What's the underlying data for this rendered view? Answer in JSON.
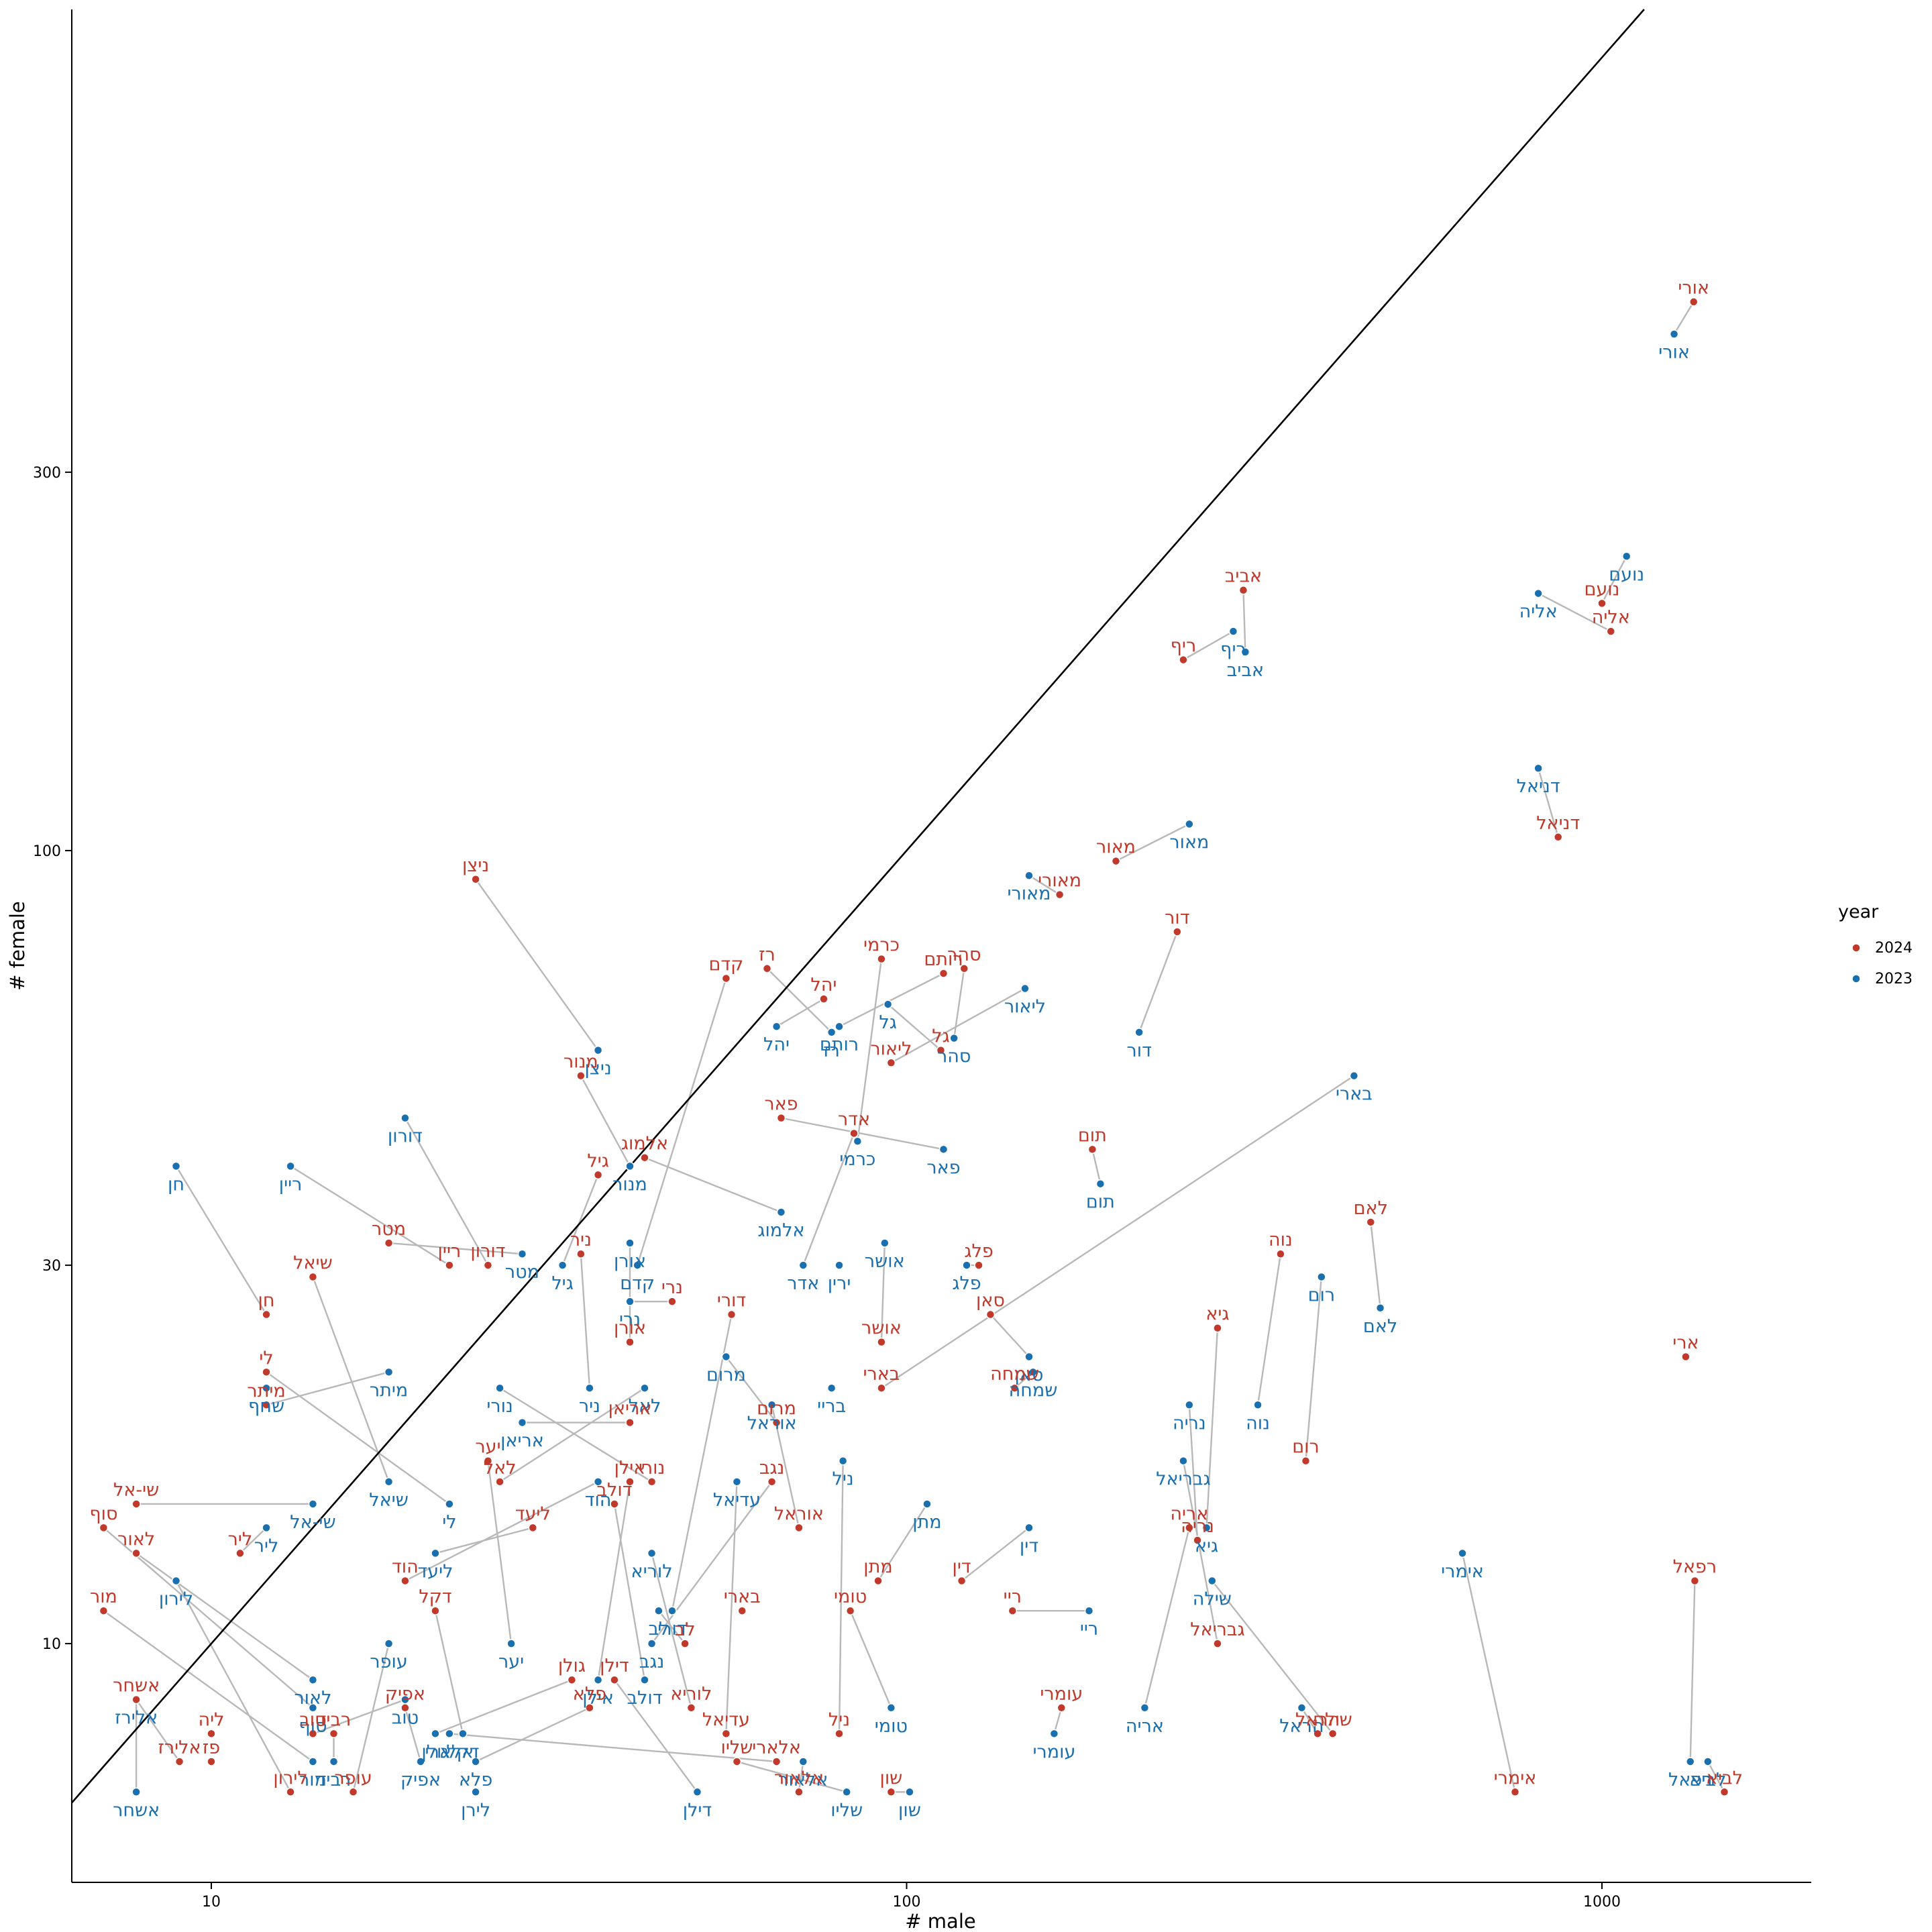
{
  "chart_data": {
    "type": "scatter",
    "xlabel": "# male",
    "ylabel": "# female",
    "x_scale": "log",
    "y_scale": "log",
    "xlim": [
      6.3,
      2000
    ],
    "ylim": [
      5,
      1150
    ],
    "x_ticks": [
      10,
      100,
      1000
    ],
    "y_ticks": [
      10,
      30,
      100,
      300
    ],
    "reference_line": "y = x",
    "grid": false,
    "legend": {
      "title": "year",
      "position": "right",
      "entries": [
        "2024",
        "2023"
      ]
    },
    "colors": {
      "2024": "#c0392b",
      "2023": "#1a6faf",
      "segment": "#b8b8b8"
    },
    "series": [
      {
        "name": "2024",
        "points": [
          {
            "label": "אורי",
            "x": 1355,
            "y": 492
          },
          {
            "label": "נועם",
            "x": 1000,
            "y": 205
          },
          {
            "label": "אליה",
            "x": 1030,
            "y": 189
          },
          {
            "label": "אביב",
            "x": 305,
            "y": 213
          },
          {
            "label": "ריף",
            "x": 250,
            "y": 174
          },
          {
            "label": "דניאל",
            "x": 865,
            "y": 104
          },
          {
            "label": "מאור",
            "x": 200,
            "y": 97
          },
          {
            "label": "מאורי",
            "x": 166,
            "y": 88
          },
          {
            "label": "דור",
            "x": 245,
            "y": 79
          },
          {
            "label": "כרמי",
            "x": 92,
            "y": 73
          },
          {
            "label": "סהר",
            "x": 121,
            "y": 71
          },
          {
            "label": "רז",
            "x": 63,
            "y": 71
          },
          {
            "label": "רותם",
            "x": 113,
            "y": 70
          },
          {
            "label": "קדם",
            "x": 55,
            "y": 69
          },
          {
            "label": "יהל",
            "x": 76,
            "y": 65
          },
          {
            "label": "גל",
            "x": 112,
            "y": 56
          },
          {
            "label": "ליאור",
            "x": 95,
            "y": 54
          },
          {
            "label": "ניצן",
            "x": 24,
            "y": 92
          },
          {
            "label": "מנור",
            "x": 34,
            "y": 52
          },
          {
            "label": "פאר",
            "x": 66,
            "y": 46
          },
          {
            "label": "אדר",
            "x": 84,
            "y": 44
          },
          {
            "label": "אלמוג",
            "x": 42,
            "y": 41
          },
          {
            "label": "תום",
            "x": 185,
            "y": 42
          },
          {
            "label": "גיל",
            "x": 36,
            "y": 39
          },
          {
            "label": "לאם",
            "x": 465,
            "y": 34
          },
          {
            "label": "ניר",
            "x": 34,
            "y": 31
          },
          {
            "label": "נוה",
            "x": 345,
            "y": 31
          },
          {
            "label": "פלג",
            "x": 127,
            "y": 30
          },
          {
            "label": "מטר",
            "x": 18,
            "y": 32
          },
          {
            "label": "ריין",
            "x": 22,
            "y": 30
          },
          {
            "label": "דורון",
            "x": 25,
            "y": 30
          },
          {
            "label": "שיאל",
            "x": 14,
            "y": 29
          },
          {
            "label": "נרי",
            "x": 46,
            "y": 27
          },
          {
            "label": "דורי",
            "x": 56,
            "y": 26
          },
          {
            "label": "סאן",
            "x": 132,
            "y": 26
          },
          {
            "label": "חן",
            "x": 12,
            "y": 26
          },
          {
            "label": "גיא",
            "x": 280,
            "y": 25
          },
          {
            "label": "אושר",
            "x": 92,
            "y": 24
          },
          {
            "label": "אורן",
            "x": 40,
            "y": 24
          },
          {
            "label": "ארי",
            "x": 1320,
            "y": 23
          },
          {
            "label": "לי",
            "x": 12,
            "y": 22
          },
          {
            "label": "שמחה",
            "x": 143,
            "y": 21
          },
          {
            "label": "בארי",
            "x": 92,
            "y": 21
          },
          {
            "label": "מיתר",
            "x": 12,
            "y": 20
          },
          {
            "label": "אריאן",
            "x": 40,
            "y": 19
          },
          {
            "label": "מרום",
            "x": 65,
            "y": 19
          },
          {
            "label": "יער",
            "x": 25,
            "y": 17
          },
          {
            "label": "רום",
            "x": 375,
            "y": 17
          },
          {
            "label": "אילן",
            "x": 40,
            "y": 16
          },
          {
            "label": "נגב",
            "x": 64,
            "y": 16
          },
          {
            "label": "לאל",
            "x": 26,
            "y": 16
          },
          {
            "label": "נורי",
            "x": 43,
            "y": 16
          },
          {
            "label": "דולב",
            "x": 38,
            "y": 15
          },
          {
            "label": "אריה",
            "x": 255,
            "y": 14
          },
          {
            "label": "ליעד",
            "x": 29,
            "y": 14
          },
          {
            "label": "אוראל",
            "x": 70,
            "y": 14
          },
          {
            "label": "סוף",
            "x": 7,
            "y": 14
          },
          {
            "label": "שי-אל",
            "x": 7.8,
            "y": 15
          },
          {
            "label": "נריה",
            "x": 262,
            "y": 13.5
          },
          {
            "label": "ליר",
            "x": 11,
            "y": 13
          },
          {
            "label": "לאור",
            "x": 7.8,
            "y": 13
          },
          {
            "label": "הוד",
            "x": 19,
            "y": 12
          },
          {
            "label": "רפאל",
            "x": 1360,
            "y": 12
          },
          {
            "label": "מתן",
            "x": 91,
            "y": 12
          },
          {
            "label": "דין",
            "x": 120,
            "y": 12
          },
          {
            "label": "מור",
            "x": 7,
            "y": 11
          },
          {
            "label": "דקל",
            "x": 21,
            "y": 11
          },
          {
            "label": "בארי",
            "x": 58,
            "y": 11
          },
          {
            "label": "ריי",
            "x": 142,
            "y": 11
          },
          {
            "label": "טומי",
            "x": 83,
            "y": 11
          },
          {
            "label": "לב",
            "x": 48,
            "y": 10
          },
          {
            "label": "גבריאל",
            "x": 280,
            "y": 10
          },
          {
            "label": "גולן",
            "x": 33,
            "y": 9
          },
          {
            "label": "דילן",
            "x": 38,
            "y": 9
          },
          {
            "label": "אפיק",
            "x": 19,
            "y": 8.3
          },
          {
            "label": "פלא",
            "x": 35,
            "y": 8.3
          },
          {
            "label": "לוריא",
            "x": 49,
            "y": 8.3
          },
          {
            "label": "עומרי",
            "x": 167,
            "y": 8.3
          },
          {
            "label": "אשחר",
            "x": 7.8,
            "y": 8.5
          },
          {
            "label": "ליה",
            "x": 10,
            "y": 7.7
          },
          {
            "label": "טוב",
            "x": 14,
            "y": 7.7
          },
          {
            "label": "רביד",
            "x": 15,
            "y": 7.7
          },
          {
            "label": "עדיאל",
            "x": 55,
            "y": 7.7
          },
          {
            "label": "ניל",
            "x": 80,
            "y": 7.7
          },
          {
            "label": "הראל",
            "x": 390,
            "y": 7.7
          },
          {
            "label": "שילה",
            "x": 410,
            "y": 7.7
          },
          {
            "label": "אלירז",
            "x": 9,
            "y": 7.1
          },
          {
            "label": "פז",
            "x": 10,
            "y": 7.1
          },
          {
            "label": "אלארי",
            "x": 65,
            "y": 7.1
          },
          {
            "label": "שליו",
            "x": 57,
            "y": 7.1
          },
          {
            "label": "לירון",
            "x": 13,
            "y": 6.5
          },
          {
            "label": "עופר",
            "x": 16,
            "y": 6.5
          },
          {
            "label": "אלאור",
            "x": 70,
            "y": 6.5
          },
          {
            "label": "שון",
            "x": 95,
            "y": 6.5
          },
          {
            "label": "אימרי",
            "x": 750,
            "y": 6.5
          },
          {
            "label": "לביא",
            "x": 1500,
            "y": 6.5
          }
        ]
      },
      {
        "name": "2023",
        "points": [
          {
            "label": "אורי",
            "x": 1270,
            "y": 448
          },
          {
            "label": "נועם",
            "x": 1085,
            "y": 235
          },
          {
            "label": "אליה",
            "x": 810,
            "y": 211
          },
          {
            "label": "ריף",
            "x": 295,
            "y": 189
          },
          {
            "label": "אביב",
            "x": 307,
            "y": 178
          },
          {
            "label": "דניאל",
            "x": 810,
            "y": 127
          },
          {
            "label": "מאור",
            "x": 255,
            "y": 108
          },
          {
            "label": "מאורי",
            "x": 150,
            "y": 93
          },
          {
            "label": "ליאור",
            "x": 148,
            "y": 67
          },
          {
            "label": "גל",
            "x": 94,
            "y": 64
          },
          {
            "label": "רותם",
            "x": 80,
            "y": 60
          },
          {
            "label": "יהל",
            "x": 65,
            "y": 60
          },
          {
            "label": "רז",
            "x": 78,
            "y": 59
          },
          {
            "label": "סהר",
            "x": 117,
            "y": 58
          },
          {
            "label": "דור",
            "x": 216,
            "y": 59
          },
          {
            "label": "ניצן",
            "x": 36,
            "y": 56
          },
          {
            "label": "בארי",
            "x": 440,
            "y": 52
          },
          {
            "label": "כרמי",
            "x": 85,
            "y": 43
          },
          {
            "label": "פאר",
            "x": 113,
            "y": 42
          },
          {
            "label": "דורון",
            "x": 19,
            "y": 46
          },
          {
            "label": "חן",
            "x": 8.9,
            "y": 40
          },
          {
            "label": "ריין",
            "x": 13,
            "y": 40
          },
          {
            "label": "מנור",
            "x": 40,
            "y": 40
          },
          {
            "label": "תום",
            "x": 190,
            "y": 38
          },
          {
            "label": "אלמוג",
            "x": 66,
            "y": 35
          },
          {
            "label": "מטר",
            "x": 28,
            "y": 31
          },
          {
            "label": "גיל",
            "x": 32,
            "y": 30
          },
          {
            "label": "אורן",
            "x": 40,
            "y": 32
          },
          {
            "label": "אושר",
            "x": 93,
            "y": 32
          },
          {
            "label": "קדם",
            "x": 41,
            "y": 30
          },
          {
            "label": "אדר",
            "x": 71,
            "y": 30
          },
          {
            "label": "ירין",
            "x": 80,
            "y": 30
          },
          {
            "label": "פלג",
            "x": 122,
            "y": 30
          },
          {
            "label": "רום",
            "x": 395,
            "y": 29
          },
          {
            "label": "לאם",
            "x": 480,
            "y": 26.5
          },
          {
            "label": "נרי",
            "x": 40,
            "y": 27
          },
          {
            "label": "סאן",
            "x": 150,
            "y": 23
          },
          {
            "label": "שמחה",
            "x": 152,
            "y": 22
          },
          {
            "label": "מרום",
            "x": 55,
            "y": 23
          },
          {
            "label": "מיתר",
            "x": 18,
            "y": 22
          },
          {
            "label": "ניר",
            "x": 35,
            "y": 21
          },
          {
            "label": "נורי",
            "x": 26,
            "y": 21
          },
          {
            "label": "לאל",
            "x": 42,
            "y": 21
          },
          {
            "label": "בריי",
            "x": 78,
            "y": 21
          },
          {
            "label": "שחף",
            "x": 12,
            "y": 21
          },
          {
            "label": "נוה",
            "x": 320,
            "y": 20
          },
          {
            "label": "נריה",
            "x": 255,
            "y": 20
          },
          {
            "label": "אוראל",
            "x": 64,
            "y": 20
          },
          {
            "label": "אריאן",
            "x": 28,
            "y": 19
          },
          {
            "label": "ניל",
            "x": 81,
            "y": 17
          },
          {
            "label": "גבריאל",
            "x": 250,
            "y": 17
          },
          {
            "label": "הוד",
            "x": 36,
            "y": 16
          },
          {
            "label": "עדיאל",
            "x": 57,
            "y": 16
          },
          {
            "label": "שיאל",
            "x": 18,
            "y": 16
          },
          {
            "label": "שי-אל",
            "x": 14,
            "y": 15
          },
          {
            "label": "לי",
            "x": 22,
            "y": 15
          },
          {
            "label": "מתן",
            "x": 107,
            "y": 15
          },
          {
            "label": "גיא",
            "x": 270,
            "y": 14
          },
          {
            "label": "ליר",
            "x": 12,
            "y": 14
          },
          {
            "label": "דין",
            "x": 150,
            "y": 14
          },
          {
            "label": "אימרי",
            "x": 630,
            "y": 13
          },
          {
            "label": "לוריא",
            "x": 43,
            "y": 13
          },
          {
            "label": "ליעד",
            "x": 21,
            "y": 13
          },
          {
            "label": "שילה",
            "x": 275,
            "y": 12
          },
          {
            "label": "לירון",
            "x": 8.9,
            "y": 12
          },
          {
            "label": "לב",
            "x": 44,
            "y": 11
          },
          {
            "label": "דורי",
            "x": 46,
            "y": 11
          },
          {
            "label": "ריי",
            "x": 183,
            "y": 11
          },
          {
            "label": "עופר",
            "x": 18,
            "y": 10
          },
          {
            "label": "נגב",
            "x": 43,
            "y": 10
          },
          {
            "label": "יער",
            "x": 27,
            "y": 10
          },
          {
            "label": "לאור",
            "x": 14,
            "y": 9
          },
          {
            "label": "אילן",
            "x": 36,
            "y": 9
          },
          {
            "label": "דולב",
            "x": 42,
            "y": 9
          },
          {
            "label": "אלירז",
            "x": 7.8,
            "y": 8.5
          },
          {
            "label": "טוב",
            "x": 19,
            "y": 8.5
          },
          {
            "label": "הראל",
            "x": 370,
            "y": 8.3
          },
          {
            "label": "טומי",
            "x": 95,
            "y": 8.3
          },
          {
            "label": "עומרי",
            "x": 163,
            "y": 7.7
          },
          {
            "label": "גולן",
            "x": 21,
            "y": 7.7
          },
          {
            "label": "דקל",
            "x": 23,
            "y": 7.7
          },
          {
            "label": "אלארי",
            "x": 22,
            "y": 7.7
          },
          {
            "label": "סוף",
            "x": 14,
            "y": 8.3
          },
          {
            "label": "אריה",
            "x": 220,
            "y": 8.3
          },
          {
            "label": "אפיק",
            "x": 20,
            "y": 7.1
          },
          {
            "label": "פלא",
            "x": 24,
            "y": 7.1
          },
          {
            "label": "מור",
            "x": 14,
            "y": 7.1
          },
          {
            "label": "רביד",
            "x": 15,
            "y": 7.1
          },
          {
            "label": "רפאל",
            "x": 1340,
            "y": 7.1
          },
          {
            "label": "לביא",
            "x": 1420,
            "y": 7.1
          },
          {
            "label": "אלאור",
            "x": 71,
            "y": 7.1
          },
          {
            "label": "אשחר",
            "x": 7.8,
            "y": 6.5
          },
          {
            "label": "לירן",
            "x": 24,
            "y": 6.5
          },
          {
            "label": "דילן",
            "x": 50,
            "y": 6.5
          },
          {
            "label": "שליו",
            "x": 82,
            "y": 6.5
          },
          {
            "label": "שון",
            "x": 101,
            "y": 6.5
          }
        ]
      }
    ]
  }
}
